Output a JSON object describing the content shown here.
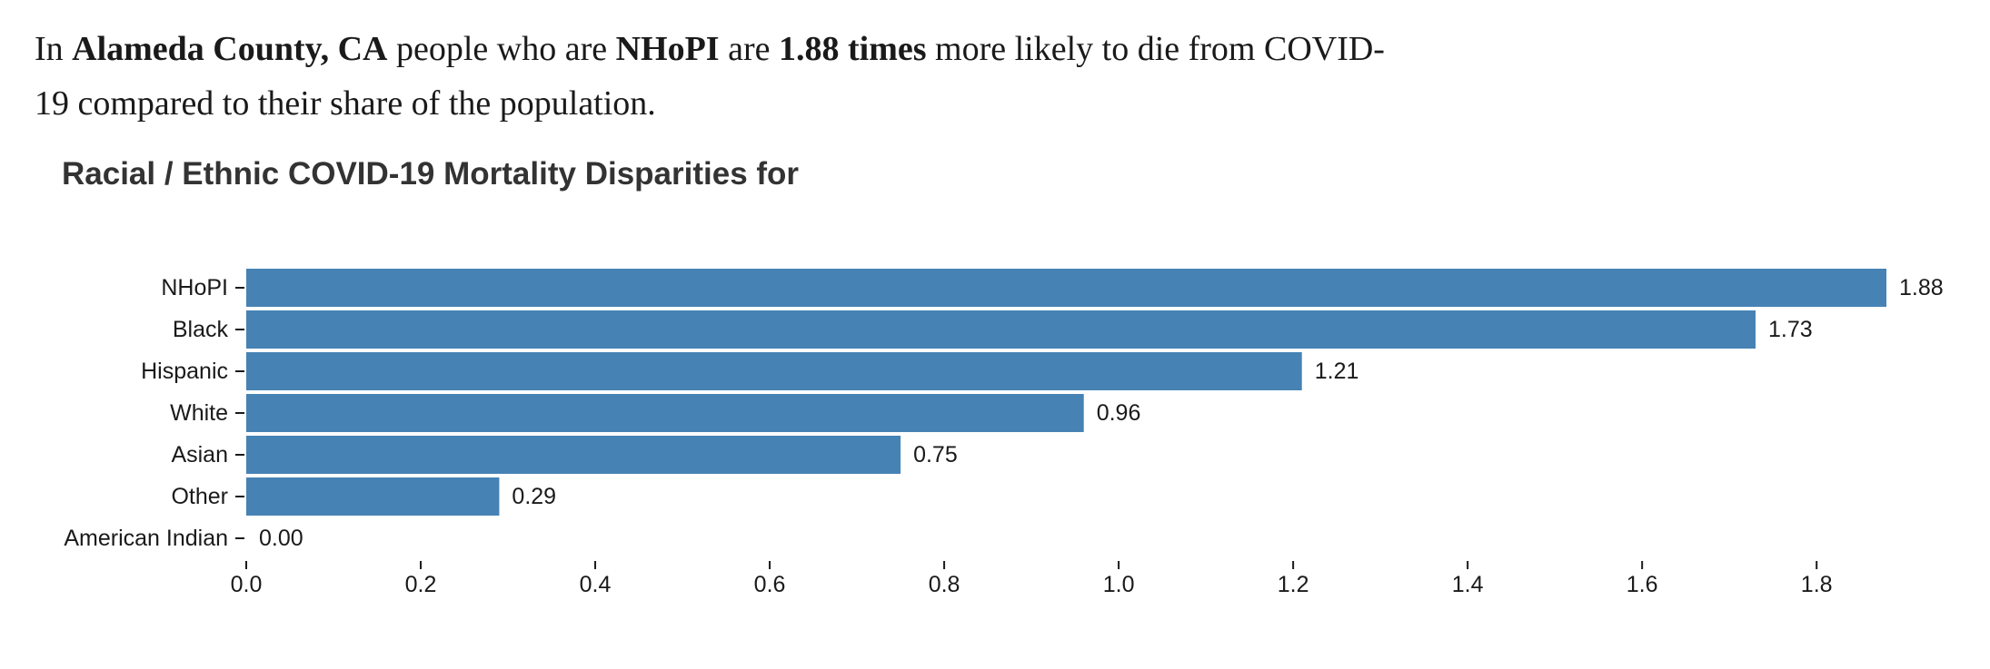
{
  "intro": {
    "p1": "In ",
    "county": "Alameda County, CA",
    "p2": " people who are ",
    "group": "NHoPI",
    "p3": " are ",
    "ratio": "1.88 times",
    "p4": " more likely to die from COVID-19 compared to their share of the population."
  },
  "colors": {
    "bar": "#4682b4",
    "text": "#1a1a1a",
    "title": "#333333"
  },
  "chart_data": {
    "type": "bar",
    "orientation": "horizontal",
    "title": "Racial / Ethnic COVID-19 Mortality Disparities for",
    "xlabel": "",
    "ylabel": "",
    "categories": [
      "NHoPI",
      "Black",
      "Hispanic",
      "White",
      "Asian",
      "Other",
      "American Indian"
    ],
    "values": [
      1.88,
      1.73,
      1.21,
      0.96,
      0.75,
      0.29,
      0.0
    ],
    "value_labels": [
      "1.88",
      "1.73",
      "1.21",
      "0.96",
      "0.75",
      "0.29",
      "0.00"
    ],
    "xlim": [
      0,
      1.88
    ],
    "xticks": [
      0.0,
      0.2,
      0.4,
      0.6,
      0.8,
      1.0,
      1.2,
      1.4,
      1.6,
      1.8
    ],
    "xtick_labels": [
      "0.0",
      "0.2",
      "0.4",
      "0.6",
      "0.8",
      "1.0",
      "1.2",
      "1.4",
      "1.6",
      "1.8"
    ],
    "grid": false,
    "legend": "none"
  }
}
